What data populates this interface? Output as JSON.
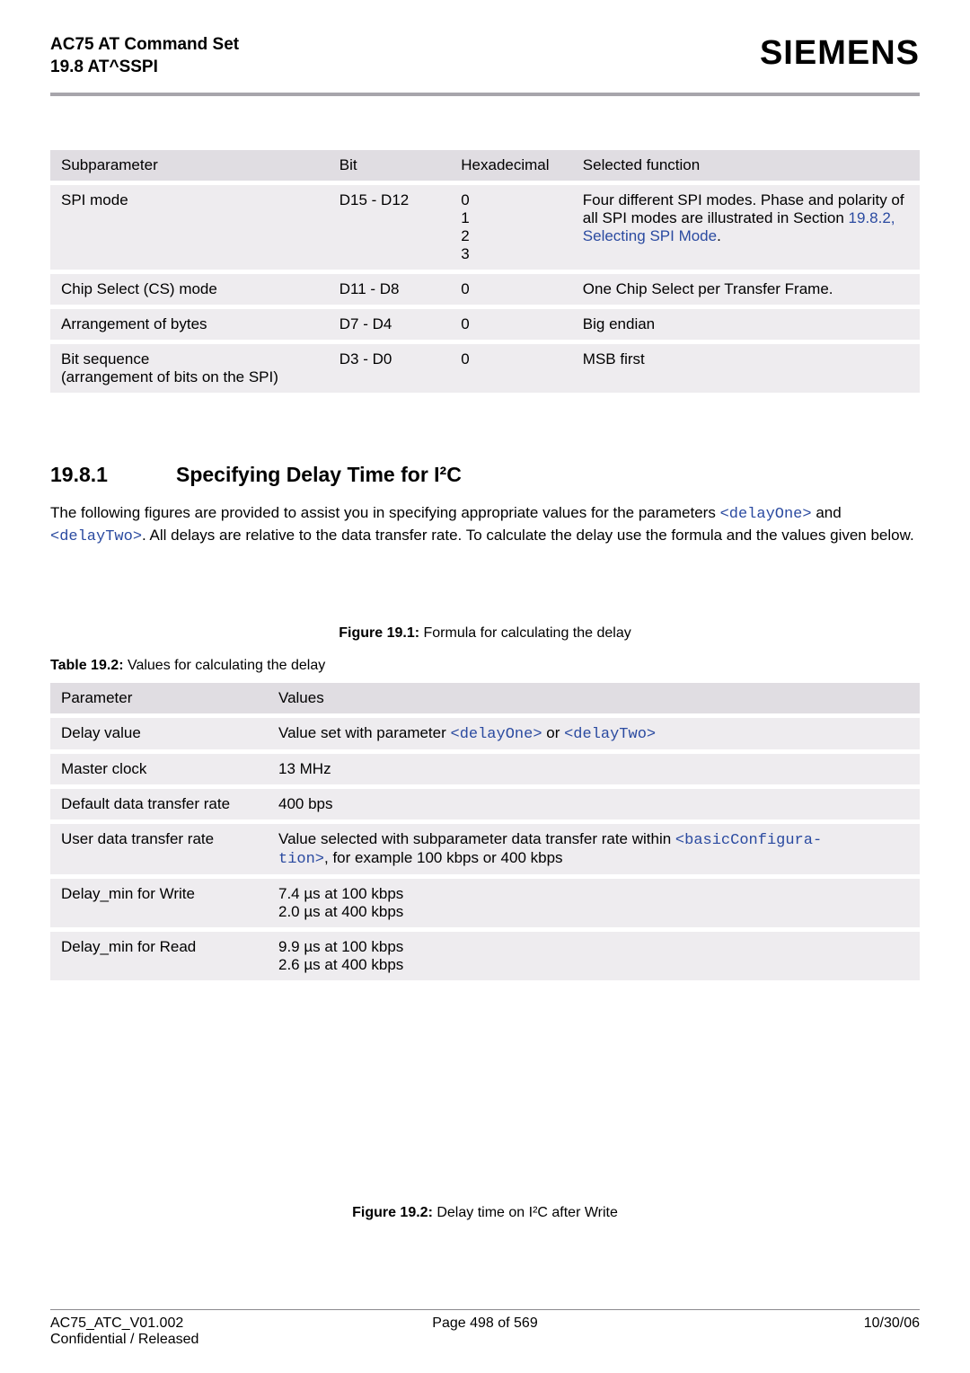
{
  "meta": {
    "doc_title": "AC75 AT Command Set",
    "doc_section": "19.8 AT^SSPI",
    "brand": "SIEMENS",
    "doc_id": "AC75_ATC_V01.002",
    "confidential": "Confidential / Released",
    "page": "Page 498 of 569",
    "date": "10/30/06"
  },
  "table1": {
    "headers": [
      "Subparameter",
      "Bit",
      "Hexadecimal",
      "Selected function"
    ],
    "rows": [
      {
        "sub": "SPI mode",
        "bit": "D15 - D12",
        "hex": "0\n1\n2\n3",
        "sel_pre": "Four different SPI modes. Phase and polarity of all SPI modes are illustrated in Section ",
        "sel_link": "19.8.2, Selecting SPI Mode",
        "sel_post": "."
      },
      {
        "sub": "Chip Select (CS) mode",
        "bit": "D11 - D8",
        "hex": "0",
        "sel_pre": "One Chip Select per Transfer Frame.",
        "sel_link": "",
        "sel_post": ""
      },
      {
        "sub": "Arrangement of bytes",
        "bit": "D7 - D4",
        "hex": "0",
        "sel_pre": "Big endian",
        "sel_link": "",
        "sel_post": ""
      },
      {
        "sub": "Bit sequence\n(arrangement of bits on the SPI)",
        "bit": "D3 - D0",
        "hex": "0",
        "sel_pre": "MSB first",
        "sel_link": "",
        "sel_post": ""
      }
    ]
  },
  "section": {
    "number": "19.8.1",
    "title": "Specifying Delay Time for I²C",
    "para_pre": "The following figures are provided to assist you in specifying appropriate values for the parameters ",
    "code1": "<delayOne>",
    "para_mid1": " and ",
    "code2": "<delayTwo>",
    "para_post": ". All delays are relative to the data transfer rate. To calculate the delay use the formula and the values given below."
  },
  "fig1": {
    "label": "Figure 19.1:",
    "text": " Formula for calculating the delay"
  },
  "tcap": {
    "label": "Table 19.2:",
    "text": "   Values for calculating the delay"
  },
  "table2": {
    "headers": [
      "Parameter",
      "Values"
    ],
    "rows": [
      {
        "name": "Delay value",
        "val_pre": "Value set with parameter ",
        "code1": "<delayOne>",
        "mid": " or ",
        "code2": "<delayTwo>",
        "post": ""
      },
      {
        "name": "Master clock",
        "val_pre": "13 MHz",
        "code1": "",
        "mid": "",
        "code2": "",
        "post": ""
      },
      {
        "name": "Default data transfer rate",
        "val_pre": "400 bps",
        "code1": "",
        "mid": "",
        "code2": "",
        "post": ""
      },
      {
        "name": "User data transfer rate",
        "val_pre": "Value selected with subparameter data transfer rate within ",
        "code1": "<basicConfigura-\ntion>",
        "mid": "",
        "code2": "",
        "post": ", for example 100 kbps or 400 kbps"
      },
      {
        "name": "Delay_min for Write",
        "val_pre": "7.4 µs at 100 kbps\n2.0 µs at 400 kbps",
        "code1": "",
        "mid": "",
        "code2": "",
        "post": ""
      },
      {
        "name": "Delay_min for Read",
        "val_pre": "9.9 µs at 100 kbps\n2.6 µs at 400 kbps",
        "code1": "",
        "mid": "",
        "code2": "",
        "post": ""
      }
    ]
  },
  "fig2": {
    "label": "Figure 19.2:",
    "text": " Delay time on I²C after Write"
  },
  "colors": {
    "rule": "#a7a5ab",
    "th_bg": "#e0dde2",
    "td_bg": "#eeecef",
    "link": "#2a4aa0"
  }
}
